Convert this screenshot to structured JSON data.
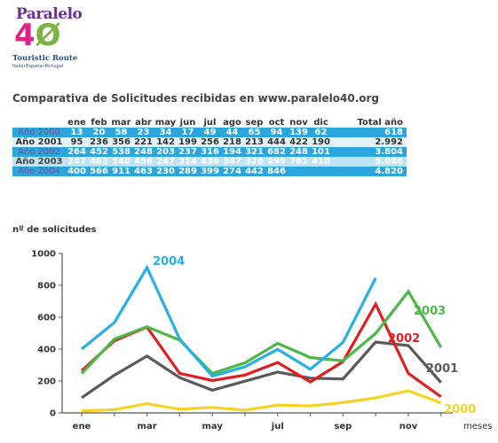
{
  "logo": {
    "name": "Paralelo",
    "number_a": "4",
    "number_b": "Ø",
    "subtitle": "Touristic Route",
    "subtitle2": "Italia•España•Portugal"
  },
  "table": {
    "title": "Comparativa de Solicitudes recibidas en www.paralelo40.org",
    "headers": [
      "ene",
      "feb",
      "mar",
      "abr",
      "may",
      "jun",
      "jul",
      "ago",
      "sep",
      "oct",
      "nov",
      "dic",
      "Total año"
    ],
    "rows": [
      {
        "year": "Año 2000",
        "values": [
          "13",
          "20",
          "58",
          "23",
          "34",
          "17",
          "49",
          "44",
          "65",
          "94",
          "139",
          "62"
        ],
        "total": "618",
        "style": "blue"
      },
      {
        "year": "Año 2001",
        "values": [
          "95",
          "236",
          "356",
          "221",
          "142",
          "199",
          "256",
          "218",
          "213",
          "444",
          "422",
          "190"
        ],
        "total": "2.992",
        "style": "white"
      },
      {
        "year": "Año 2002",
        "values": [
          "264",
          "452",
          "538",
          "248",
          "203",
          "237",
          "316",
          "194",
          "321",
          "682",
          "248",
          "101"
        ],
        "total": "3.804",
        "style": "blue"
      },
      {
        "year": "Año 2003",
        "values": [
          "247",
          "463",
          "540",
          "456",
          "247",
          "314",
          "436",
          "347",
          "326",
          "499",
          "761",
          "410"
        ],
        "total": "5.046",
        "style": "light"
      },
      {
        "year": "Año 2004",
        "values": [
          "400",
          "566",
          "911",
          "463",
          "230",
          "289",
          "399",
          "274",
          "442",
          "846",
          "",
          ""
        ],
        "total": "4.820",
        "style": "blue"
      }
    ]
  },
  "chart_data": {
    "type": "line",
    "ylabel": "nº de solicitudes",
    "xlabel": "meses",
    "ylim": [
      0,
      1000
    ],
    "yticks": [
      0,
      200,
      400,
      600,
      800,
      1000
    ],
    "categories": [
      "ene",
      "feb",
      "mar",
      "abr",
      "may",
      "jun",
      "jul",
      "ago",
      "sep",
      "oct",
      "nov",
      "dic"
    ],
    "x_tick_labels": [
      "ene",
      "",
      "mar",
      "",
      "may",
      "",
      "jul",
      "",
      "sep",
      "",
      "nov",
      ""
    ],
    "series": [
      {
        "name": "2000",
        "color": "#f5d322",
        "values": [
          13,
          20,
          58,
          23,
          34,
          17,
          49,
          44,
          65,
          94,
          139,
          62
        ]
      },
      {
        "name": "2001",
        "color": "#5a5a5a",
        "values": [
          95,
          236,
          356,
          221,
          142,
          199,
          256,
          218,
          213,
          444,
          422,
          190
        ]
      },
      {
        "name": "2002",
        "color": "#e02020",
        "values": [
          264,
          452,
          538,
          248,
          203,
          237,
          316,
          194,
          321,
          682,
          248,
          101
        ]
      },
      {
        "name": "2003",
        "color": "#4cb848",
        "values": [
          247,
          463,
          540,
          456,
          247,
          314,
          436,
          347,
          326,
          499,
          761,
          410
        ]
      },
      {
        "name": "2004",
        "color": "#26b0e6",
        "values": [
          400,
          566,
          911,
          463,
          230,
          289,
          399,
          274,
          442,
          846,
          null,
          null
        ]
      }
    ]
  }
}
